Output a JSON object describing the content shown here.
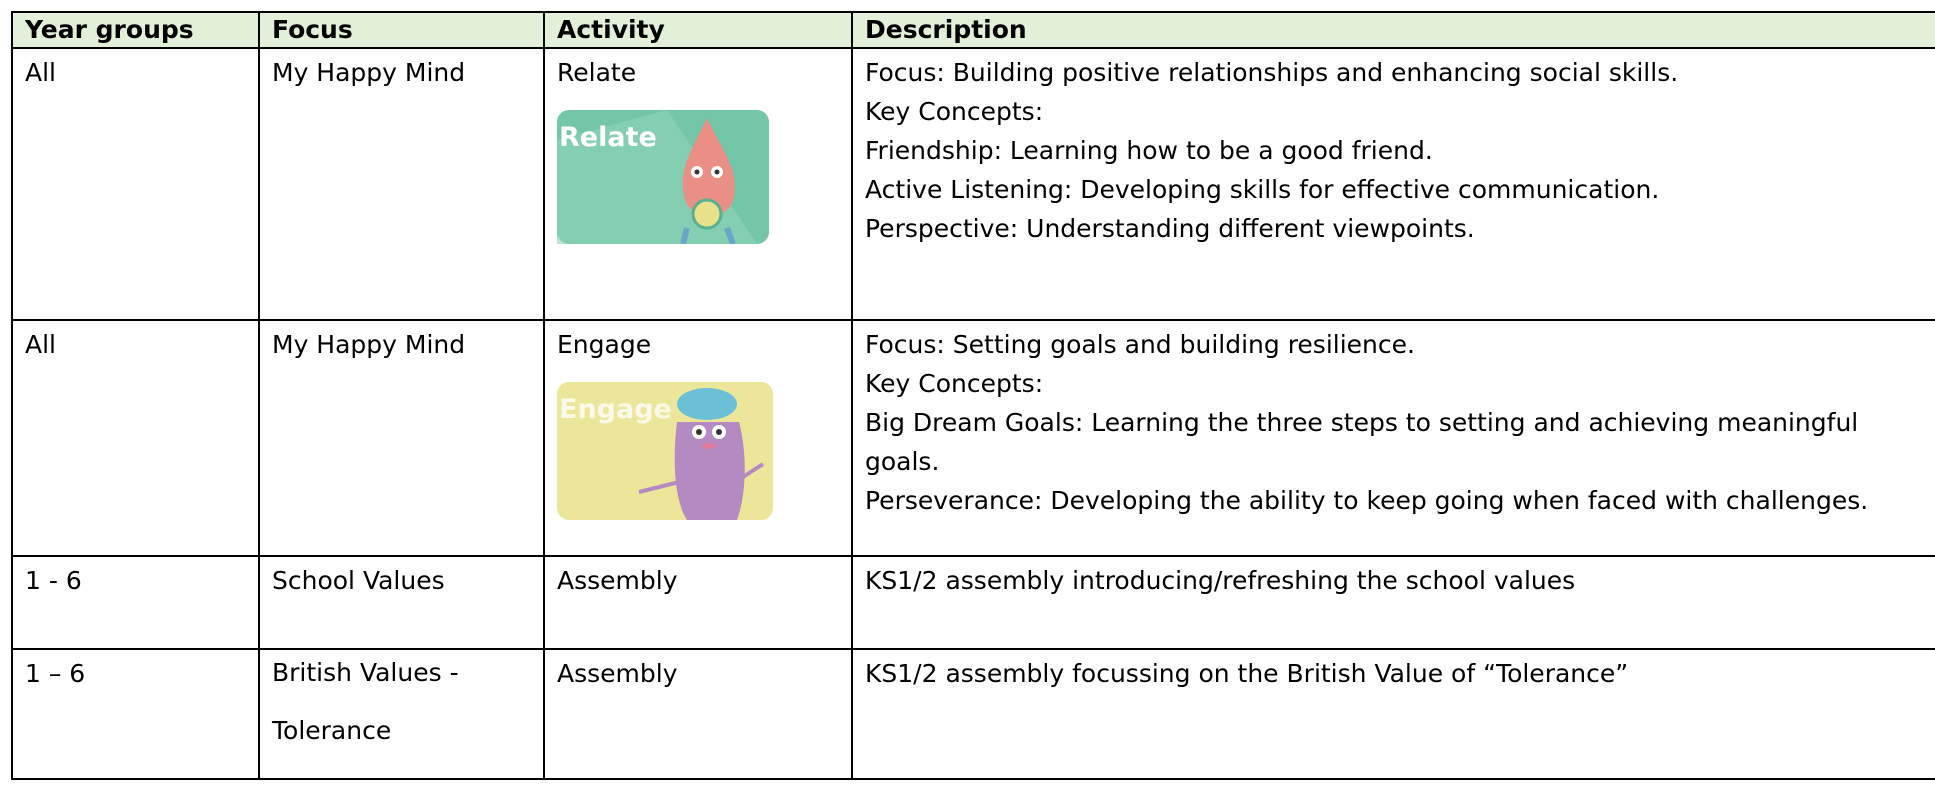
{
  "table": {
    "headers": [
      "Year groups",
      "Focus",
      "Activity",
      "Description"
    ],
    "rows": [
      {
        "year": "All",
        "focus": "My Happy Mind",
        "activity": "Relate",
        "image_label": "Relate",
        "description": [
          "Focus: Building positive relationships and enhancing social skills.",
          "Key Concepts:",
          "Friendship: Learning how to be a good friend.",
          "Active Listening: Developing skills for effective communication.",
          "Perspective: Understanding different viewpoints."
        ]
      },
      {
        "year": "All",
        "focus": "My Happy Mind",
        "activity": "Engage",
        "image_label": "Engage",
        "description": [
          "Focus: Setting goals and building resilience.",
          "Key Concepts:",
          "Big Dream Goals: Learning the three steps to setting and achieving meaningful goals.",
          "Perseverance: Developing the ability to keep going when faced with challenges."
        ]
      },
      {
        "year": "1 - 6",
        "focus": "School Values",
        "activity": "Assembly",
        "description": [
          "KS1/2 assembly introducing/refreshing the school values"
        ]
      },
      {
        "year": "1 – 6",
        "focus": "British Values - Tolerance",
        "activity": "Assembly",
        "description": [
          "KS1/2 assembly focussing on the British Value of “Tolerance”"
        ]
      }
    ]
  }
}
